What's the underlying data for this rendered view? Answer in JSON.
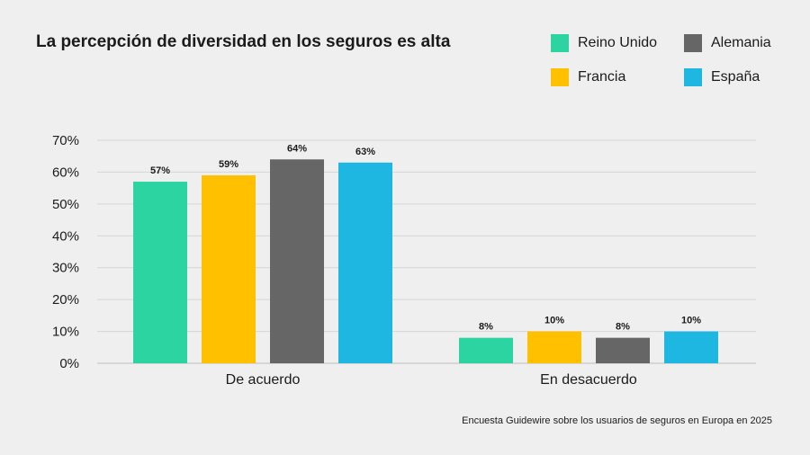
{
  "chart_data": {
    "type": "bar",
    "title": "La percepción de diversidad en los seguros es alta",
    "categories": [
      "De acuerdo",
      "En desacuerdo"
    ],
    "series": [
      {
        "name": "Reino Unido",
        "color": "#2bd4a0",
        "values": [
          57,
          8
        ],
        "labels": [
          "57%",
          "8%"
        ]
      },
      {
        "name": "Francia",
        "color": "#ffc000",
        "values": [
          59,
          10
        ],
        "labels": [
          "59%",
          "10%"
        ]
      },
      {
        "name": "Alemania",
        "color": "#666666",
        "values": [
          64,
          8
        ],
        "labels": [
          "64%",
          "8%"
        ]
      },
      {
        "name": "España",
        "color": "#1eb7e1",
        "values": [
          63,
          10
        ],
        "labels": [
          "63%",
          "10%"
        ]
      }
    ],
    "ylim": [
      0,
      70
    ],
    "yticks": [
      0,
      10,
      20,
      30,
      40,
      50,
      60,
      70
    ],
    "ytick_labels": [
      "0%",
      "10%",
      "20%",
      "30%",
      "40%",
      "50%",
      "60%",
      "70%"
    ],
    "grid": true,
    "legend_position": "top-right",
    "source": "Encuesta Guidewire sobre los usuarios de seguros en Europa en 2025"
  }
}
